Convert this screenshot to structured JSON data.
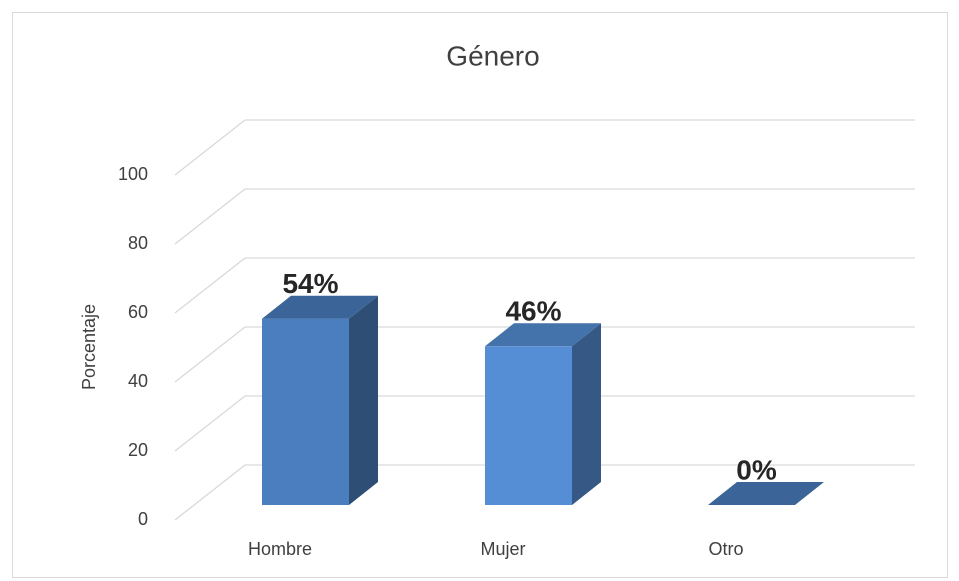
{
  "chart_data": {
    "type": "bar3d",
    "title": "Género",
    "ylabel": "Porcentaje",
    "categories": [
      "Hombre",
      "Mujer",
      "Otro"
    ],
    "values": [
      54,
      46,
      0
    ],
    "value_labels": [
      "54%",
      "46%",
      "0%"
    ],
    "colors": [
      "#4a7ebf",
      "#558ed5",
      "#4a7ebf"
    ],
    "ylim": [
      0,
      100
    ],
    "yticks": [
      0,
      20,
      40,
      60,
      80,
      100
    ],
    "grid": true
  }
}
